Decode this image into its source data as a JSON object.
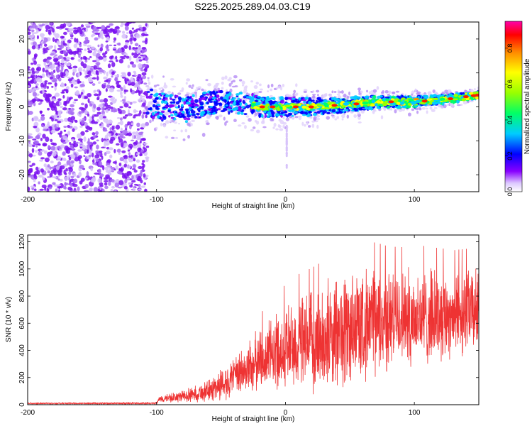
{
  "title": "S225.2025.289.04.03.C19",
  "chart_data": [
    {
      "type": "heatmap",
      "name": "spectrogram",
      "xlabel": "Height of straight line (km)",
      "ylabel": "Frequency (Hz)",
      "xlim": [
        -200,
        150
      ],
      "ylim": [
        -25,
        25
      ],
      "xticks": [
        -200,
        -100,
        0,
        100
      ],
      "yticks": [
        -20,
        -10,
        0,
        10,
        20
      ],
      "colorbar": {
        "label": "Normalized spectral amplitude",
        "range": [
          0,
          0.95
        ],
        "ticks": [
          0.0,
          0.2,
          0.4,
          0.6,
          0.8
        ],
        "tick_labels": [
          "0.0",
          "0.2",
          "0.4",
          "0.6",
          "0.8"
        ]
      },
      "ridge": {
        "x": [
          -107,
          -100,
          -90,
          -80,
          -70,
          -60,
          -50,
          -40,
          -30,
          -20,
          -10,
          0,
          20,
          40,
          60,
          80,
          100,
          120,
          140,
          150
        ],
        "hz": [
          2,
          0,
          0,
          -1,
          0,
          1,
          2,
          1,
          1,
          0,
          0,
          0,
          0,
          0.5,
          1,
          1.5,
          1.5,
          2,
          3,
          3.5
        ]
      },
      "noise_region": [
        -200,
        -107
      ]
    },
    {
      "type": "line",
      "name": "snr",
      "xlabel": "Height of straight line (km)",
      "ylabel": "SNR (10 * v/v)",
      "xlim": [
        -200,
        150
      ],
      "ylim": [
        0,
        1250
      ],
      "xticks": [
        -200,
        -100,
        0,
        100
      ],
      "yticks": [
        0,
        200,
        400,
        600,
        800,
        1000,
        1200
      ],
      "color": "#ee3333",
      "envelope": {
        "x": [
          -200,
          -100,
          -98,
          -80,
          -60,
          -50,
          -40,
          -30,
          -20,
          -10,
          0,
          10,
          20,
          30,
          40,
          50,
          60,
          70,
          80,
          90,
          100,
          110,
          120,
          130,
          140,
          150
        ],
        "mean": [
          10,
          10,
          40,
          60,
          100,
          150,
          200,
          260,
          330,
          380,
          420,
          440,
          460,
          490,
          520,
          560,
          600,
          610,
          620,
          640,
          650,
          640,
          660,
          670,
          680,
          700
        ],
        "spread": [
          6,
          8,
          30,
          50,
          90,
          140,
          160,
          220,
          260,
          300,
          360,
          400,
          420,
          440,
          480,
          520,
          460,
          450,
          420,
          400,
          420,
          400,
          380,
          360,
          360,
          340
        ]
      }
    }
  ]
}
